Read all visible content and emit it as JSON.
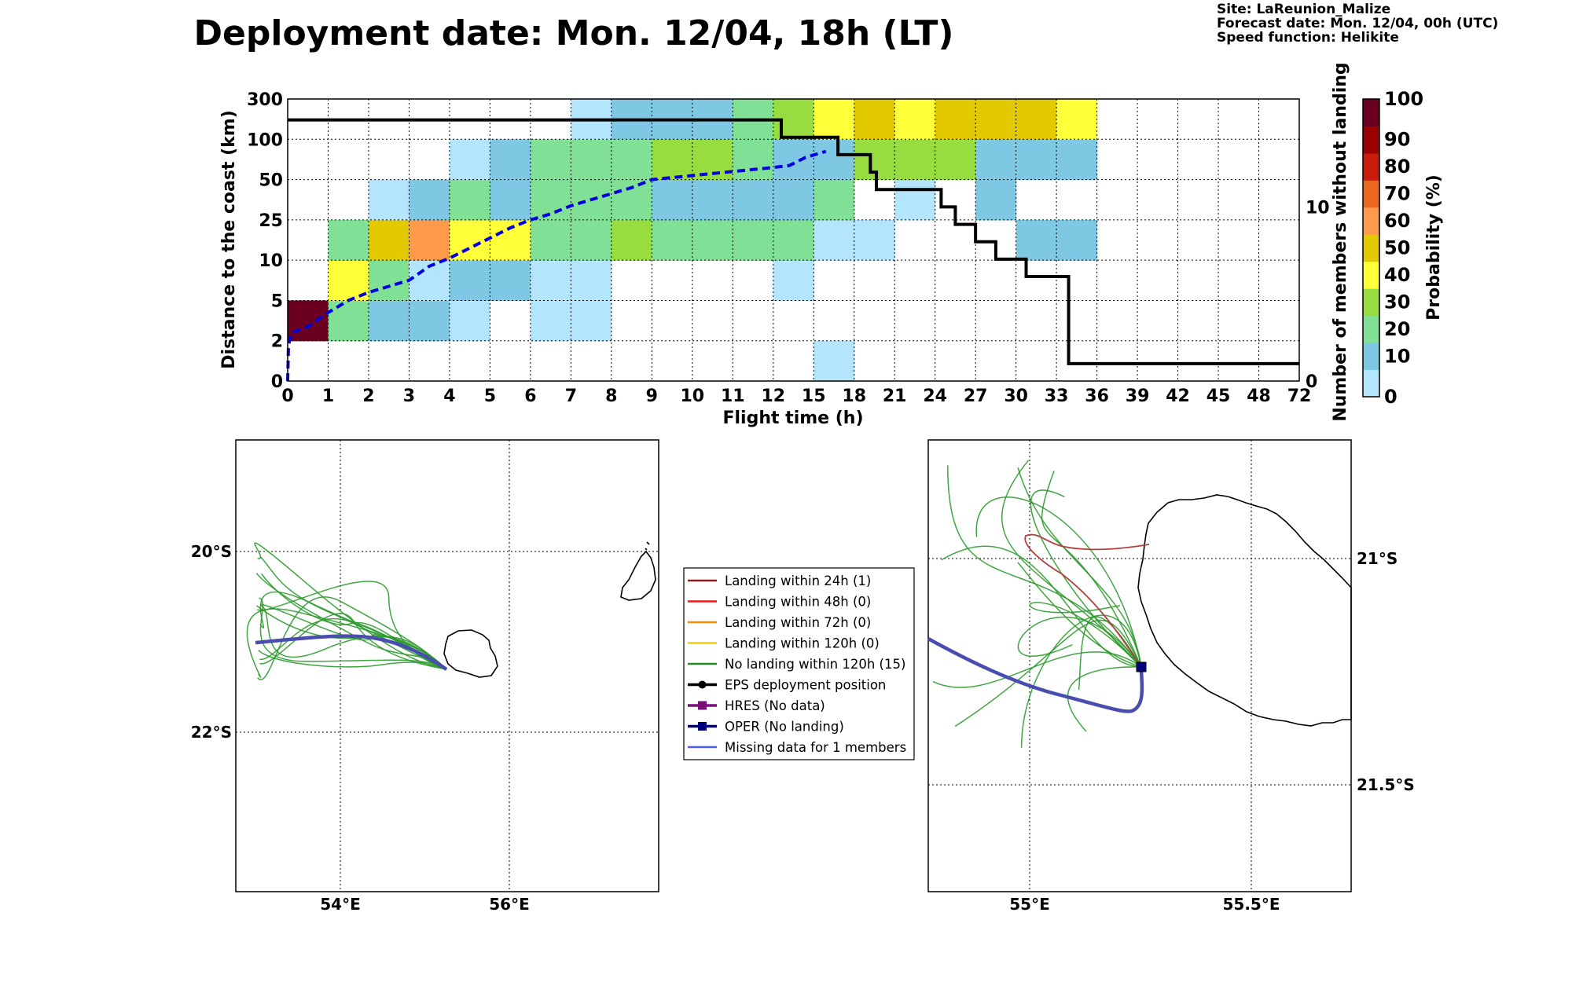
{
  "title": "Deployment date: Mon. 12/04, 18h (LT)",
  "info": {
    "site": "Site: LaReunion_Malize",
    "forecast": "Forecast date: Mon. 12/04, 00h (UTC)",
    "speed": "Speed function: Helikite"
  },
  "chart_data": [
    {
      "type": "heatmap",
      "xlabel": "Flight time (h)",
      "ylabel": "Distance to the coast (km)",
      "y2label": "Number of members without landing",
      "x_ticks": [
        "0",
        "1",
        "2",
        "3",
        "4",
        "5",
        "6",
        "7",
        "8",
        "9",
        "10",
        "11",
        "12",
        "15",
        "18",
        "21",
        "24",
        "27",
        "30",
        "33",
        "36",
        "39",
        "42",
        "45",
        "48",
        "72"
      ],
      "y_ticks": [
        "0",
        "2",
        "5",
        "10",
        "25",
        "50",
        "100",
        "300"
      ],
      "y2_ticks": [
        "0",
        "10"
      ],
      "y2lim": [
        0,
        16.2
      ],
      "colorbar": {
        "label": "Probability (%)",
        "ticks": [
          "0",
          "10",
          "20",
          "30",
          "40",
          "50",
          "60",
          "70",
          "80",
          "90",
          "100"
        ],
        "colors": [
          "#b3e5fc",
          "#7ec8e3",
          "#80e095",
          "#98dd40",
          "#ffff3a",
          "#e2c900",
          "#fe9a49",
          "#eb661f",
          "#c91d0c",
          "#9a0101",
          "#6b0021"
        ]
      },
      "cells": [
        [
          0,
          1,
          "#6b0021"
        ],
        [
          1,
          1,
          "#80e095"
        ],
        [
          2,
          1,
          "#7ec8e3"
        ],
        [
          3,
          1,
          "#7ec8e3"
        ],
        [
          4,
          1,
          "#b3e5fc"
        ],
        [
          6,
          1,
          "#b3e5fc"
        ],
        [
          7,
          1,
          "#b3e5fc"
        ],
        [
          1,
          2,
          "#ffff3a"
        ],
        [
          2,
          2,
          "#80e095"
        ],
        [
          3,
          2,
          "#b3e5fc"
        ],
        [
          4,
          2,
          "#7ec8e3"
        ],
        [
          5,
          2,
          "#7ec8e3"
        ],
        [
          6,
          2,
          "#b3e5fc"
        ],
        [
          7,
          2,
          "#b3e5fc"
        ],
        [
          12,
          2,
          "#b3e5fc"
        ],
        [
          1,
          3,
          "#80e095"
        ],
        [
          2,
          3,
          "#e2c900"
        ],
        [
          3,
          3,
          "#fe9a49"
        ],
        [
          4,
          3,
          "#ffff3a"
        ],
        [
          5,
          3,
          "#ffff3a"
        ],
        [
          6,
          3,
          "#80e095"
        ],
        [
          7,
          3,
          "#80e095"
        ],
        [
          8,
          3,
          "#98dd40"
        ],
        [
          9,
          3,
          "#80e095"
        ],
        [
          10,
          3,
          "#80e095"
        ],
        [
          11,
          3,
          "#80e095"
        ],
        [
          12,
          3,
          "#80e095"
        ],
        [
          13,
          3,
          "#b3e5fc"
        ],
        [
          14,
          3,
          "#b3e5fc"
        ],
        [
          18,
          3,
          "#7ec8e3"
        ],
        [
          19,
          3,
          "#7ec8e3"
        ],
        [
          2,
          4,
          "#b3e5fc"
        ],
        [
          3,
          4,
          "#7ec8e3"
        ],
        [
          4,
          4,
          "#80e095"
        ],
        [
          5,
          4,
          "#7ec8e3"
        ],
        [
          6,
          4,
          "#80e095"
        ],
        [
          7,
          4,
          "#80e095"
        ],
        [
          8,
          4,
          "#80e095"
        ],
        [
          9,
          4,
          "#7ec8e3"
        ],
        [
          10,
          4,
          "#7ec8e3"
        ],
        [
          11,
          4,
          "#7ec8e3"
        ],
        [
          12,
          4,
          "#7ec8e3"
        ],
        [
          13,
          4,
          "#80e095"
        ],
        [
          15,
          4,
          "#b3e5fc"
        ],
        [
          17,
          4,
          "#7ec8e3"
        ],
        [
          4,
          5,
          "#b3e5fc"
        ],
        [
          5,
          5,
          "#7ec8e3"
        ],
        [
          6,
          5,
          "#80e095"
        ],
        [
          7,
          5,
          "#80e095"
        ],
        [
          8,
          5,
          "#80e095"
        ],
        [
          9,
          5,
          "#98dd40"
        ],
        [
          10,
          5,
          "#98dd40"
        ],
        [
          11,
          5,
          "#80e095"
        ],
        [
          12,
          5,
          "#7ec8e3"
        ],
        [
          13,
          5,
          "#7ec8e3"
        ],
        [
          14,
          5,
          "#98dd40"
        ],
        [
          15,
          5,
          "#98dd40"
        ],
        [
          16,
          5,
          "#98dd40"
        ],
        [
          17,
          5,
          "#7ec8e3"
        ],
        [
          18,
          5,
          "#7ec8e3"
        ],
        [
          19,
          5,
          "#7ec8e3"
        ],
        [
          7,
          6,
          "#b3e5fc"
        ],
        [
          8,
          6,
          "#7ec8e3"
        ],
        [
          9,
          6,
          "#7ec8e3"
        ],
        [
          10,
          6,
          "#7ec8e3"
        ],
        [
          11,
          6,
          "#80e095"
        ],
        [
          12,
          6,
          "#98dd40"
        ],
        [
          13,
          6,
          "#ffff3a"
        ],
        [
          14,
          6,
          "#e2c900"
        ],
        [
          15,
          6,
          "#ffff3a"
        ],
        [
          16,
          6,
          "#e2c900"
        ],
        [
          17,
          6,
          "#e2c900"
        ],
        [
          18,
          6,
          "#e2c900"
        ],
        [
          19,
          6,
          "#ffff3a"
        ],
        [
          13,
          0,
          "#b3e5fc"
        ]
      ],
      "members_without_landing": [
        [
          0,
          15
        ],
        [
          12.2,
          15
        ],
        [
          12.2,
          14
        ],
        [
          13.6,
          14
        ],
        [
          13.6,
          13
        ],
        [
          14.4,
          13
        ],
        [
          14.4,
          12
        ],
        [
          14.55,
          12
        ],
        [
          14.55,
          11
        ],
        [
          16.15,
          11
        ],
        [
          16.15,
          10
        ],
        [
          16.5,
          10
        ],
        [
          16.5,
          9
        ],
        [
          17.0,
          9
        ],
        [
          17.0,
          8
        ],
        [
          17.5,
          8
        ],
        [
          17.5,
          7
        ],
        [
          18.25,
          7
        ],
        [
          18.25,
          6
        ],
        [
          19.3,
          6
        ],
        [
          19.3,
          1
        ],
        [
          25,
          1
        ]
      ],
      "median_distance_curve": [
        [
          0,
          0
        ],
        [
          0.02,
          0.9
        ],
        [
          0.1,
          1.2
        ],
        [
          0.5,
          1.35
        ],
        [
          1.0,
          1.7
        ],
        [
          1.5,
          2.0
        ],
        [
          2.0,
          2.2
        ],
        [
          2.5,
          2.35
        ],
        [
          3.0,
          2.5
        ],
        [
          3.5,
          2.85
        ],
        [
          4.0,
          3.05
        ],
        [
          4.5,
          3.3
        ],
        [
          5.0,
          3.55
        ],
        [
          5.5,
          3.8
        ],
        [
          6.0,
          4.0
        ],
        [
          6.5,
          4.15
        ],
        [
          7.0,
          4.35
        ],
        [
          7.5,
          4.5
        ],
        [
          8.0,
          4.65
        ],
        [
          8.5,
          4.8
        ],
        [
          9.0,
          5.0
        ],
        [
          9.5,
          5.05
        ],
        [
          10.0,
          5.1
        ],
        [
          10.5,
          5.15
        ],
        [
          11.0,
          5.2
        ],
        [
          11.5,
          5.25
        ],
        [
          12.0,
          5.3
        ],
        [
          12.4,
          5.35
        ],
        [
          12.8,
          5.55
        ],
        [
          13.3,
          5.7
        ]
      ]
    },
    {
      "type": "map",
      "x_ticks": [
        "54°E",
        "56°E"
      ],
      "y_ticks": [
        "20°S",
        "22°S"
      ]
    },
    {
      "type": "map",
      "x_ticks": [
        "55°E",
        "55.5°E"
      ],
      "y_ticks": [
        "21°S",
        "21.5°S"
      ]
    }
  ],
  "legend": [
    {
      "label": "Landing within 24h (1)",
      "color": "#8b1a1a",
      "marker": "none"
    },
    {
      "label": "Landing within 48h (0)",
      "color": "#e41a1c",
      "marker": "none"
    },
    {
      "label": "Landing within 72h (0)",
      "color": "#ff8c00",
      "marker": "none"
    },
    {
      "label": "Landing within 120h (0)",
      "color": "#f0d000",
      "marker": "none"
    },
    {
      "label": "No landing within 120h (15)",
      "color": "#228b22",
      "marker": "none"
    },
    {
      "label": "EPS deployment position",
      "color": "#000000",
      "marker": "circle"
    },
    {
      "label": "HRES (No data)",
      "color": "#7a0f7a",
      "marker": "square"
    },
    {
      "label": "OPER (No landing)",
      "color": "#000080",
      "marker": "square"
    },
    {
      "label": "Missing data for 1 members",
      "color": "#4a5fe8",
      "marker": "none"
    }
  ]
}
